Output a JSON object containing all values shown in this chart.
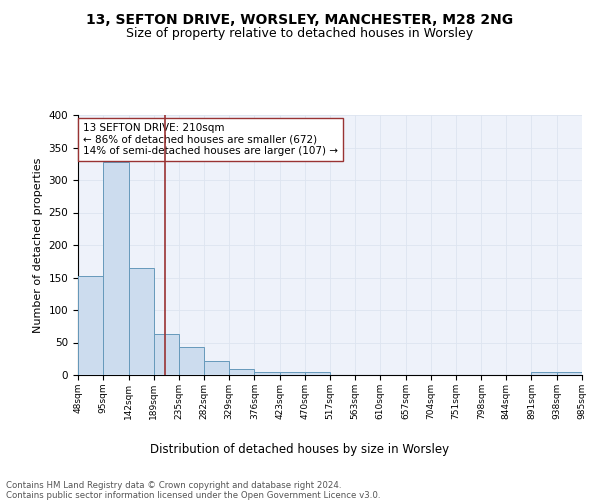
{
  "title1": "13, SEFTON DRIVE, WORSLEY, MANCHESTER, M28 2NG",
  "title2": "Size of property relative to detached houses in Worsley",
  "xlabel": "Distribution of detached houses by size in Worsley",
  "ylabel": "Number of detached properties",
  "bar_left_edges": [
    48,
    95,
    142,
    189,
    235,
    282,
    329,
    376,
    423,
    470,
    517,
    563,
    610,
    657,
    704,
    751,
    798,
    844,
    891,
    938
  ],
  "bar_heights": [
    152,
    328,
    165,
    63,
    43,
    21,
    9,
    4,
    4,
    5,
    0,
    0,
    0,
    0,
    0,
    0,
    0,
    0,
    4,
    4
  ],
  "bin_width": 47,
  "tick_labels": [
    "48sqm",
    "95sqm",
    "142sqm",
    "189sqm",
    "235sqm",
    "282sqm",
    "329sqm",
    "376sqm",
    "423sqm",
    "470sqm",
    "517sqm",
    "563sqm",
    "610sqm",
    "657sqm",
    "704sqm",
    "751sqm",
    "798sqm",
    "844sqm",
    "891sqm",
    "938sqm",
    "985sqm"
  ],
  "bar_color": "#ccdcee",
  "bar_edge_color": "#6699bb",
  "vline_x": 210,
  "vline_color": "#993333",
  "annotation_box_text": "13 SEFTON DRIVE: 210sqm\n← 86% of detached houses are smaller (672)\n14% of semi-detached houses are larger (107) →",
  "grid_color": "#dde4f0",
  "background_color": "#eef2fa",
  "ylim": [
    0,
    400
  ],
  "yticks": [
    0,
    50,
    100,
    150,
    200,
    250,
    300,
    350,
    400
  ],
  "footnote": "Contains HM Land Registry data © Crown copyright and database right 2024.\nContains public sector information licensed under the Open Government Licence v3.0.",
  "title1_fontsize": 10,
  "title2_fontsize": 9,
  "xlabel_fontsize": 8.5,
  "ylabel_fontsize": 8
}
